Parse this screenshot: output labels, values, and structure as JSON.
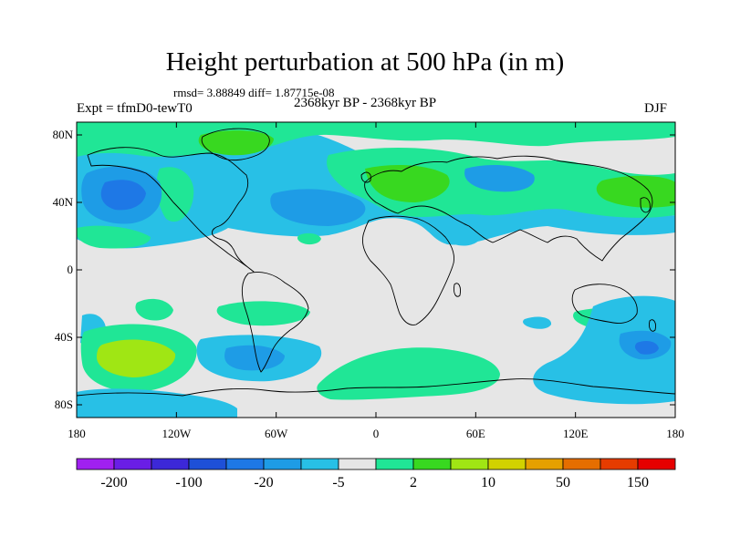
{
  "title": "Height perturbation at 500 hPa (in m)",
  "stats": "rmsd= 3.88849 diff= 1.87715e-08",
  "experiment": "Expt = tfmD0-tewT0",
  "period": "2368kyr BP - 2368kyr BP",
  "season": "DJF",
  "map": {
    "lat_ticks": [
      "80N",
      "40N",
      "0",
      "40S",
      "80S"
    ],
    "lon_ticks": [
      "180",
      "120W",
      "60W",
      "0",
      "60E",
      "120E",
      "180"
    ],
    "background_color": "#e6e6e6",
    "coastline_color": "#000000"
  },
  "colorbar": {
    "colors": [
      "#a020f0",
      "#6a1ee6",
      "#3c28d8",
      "#1e50d8",
      "#1e78e6",
      "#1e9ce6",
      "#28c0e6",
      "#e6e6e6",
      "#20e696",
      "#38d820",
      "#a0e614",
      "#d2d200",
      "#e6a000",
      "#e66e00",
      "#e63c00",
      "#e60000"
    ],
    "labels": [
      "-200",
      "-100",
      "-20",
      "-5",
      "2",
      "10",
      "50",
      "150"
    ]
  }
}
